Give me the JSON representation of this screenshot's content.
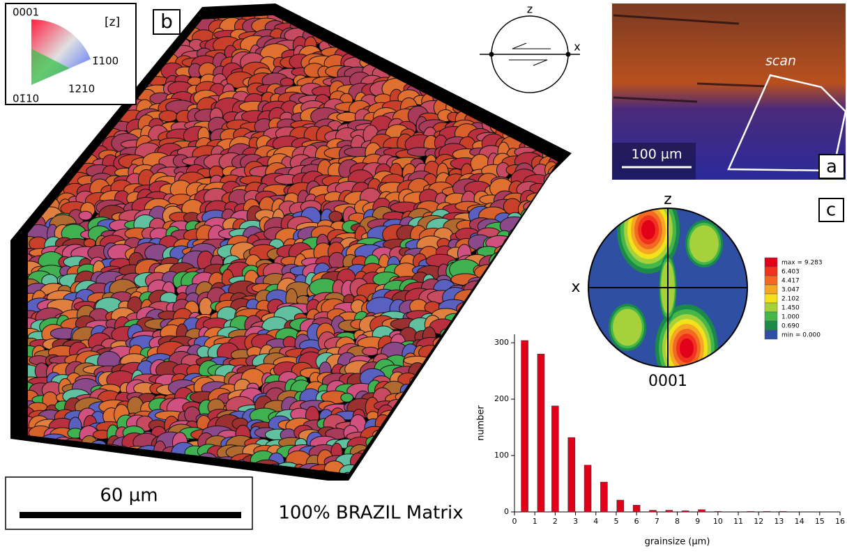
{
  "ipf_key": {
    "labels": [
      "0001",
      "[z]",
      "1̄100",
      "1210",
      "01̄10"
    ]
  },
  "panel_labels": {
    "b": "b",
    "a": "a",
    "c": "c"
  },
  "shear_sense": {
    "z": "z",
    "x": "x"
  },
  "photo": {
    "scan": "scan",
    "scale": "100 µm"
  },
  "map": {
    "scale": "60 µm",
    "caption": "100% BRAZIL Matrix"
  },
  "pole_figure": {
    "z": "z",
    "x": "x",
    "title": "0001",
    "legend": [
      {
        "label": "max = 9.283",
        "color": "#e0001a"
      },
      {
        "label": "6.403",
        "color": "#f0321e"
      },
      {
        "label": "4.417",
        "color": "#f26a22"
      },
      {
        "label": "3.047",
        "color": "#f5a623"
      },
      {
        "label": "2.102",
        "color": "#f2e21c"
      },
      {
        "label": "1.450",
        "color": "#a6d13a"
      },
      {
        "label": "1.000",
        "color": "#45b649"
      },
      {
        "label": "0.690",
        "color": "#1a8a4a"
      },
      {
        "label": "min = 0.000",
        "color": "#2f4fa3"
      }
    ]
  },
  "chart_data": {
    "type": "bar",
    "xlabel": "grainsize (µm)",
    "ylabel": "number",
    "color": "#e0001a",
    "x": [
      0.5,
      1.3,
      2.0,
      2.8,
      3.6,
      4.4,
      5.2,
      6.0,
      6.8,
      7.6,
      8.4,
      9.2,
      10.0,
      11.6,
      12.4,
      13.2
    ],
    "values": [
      304,
      280,
      188,
      132,
      83,
      53,
      21,
      12,
      3,
      3,
      2,
      4,
      1,
      1,
      1,
      1
    ],
    "xlim": [
      0,
      16
    ],
    "ylim": [
      0,
      315
    ],
    "xticks": [
      0,
      1,
      2,
      3,
      4,
      5,
      6,
      7,
      8,
      9,
      10,
      11,
      12,
      13,
      14,
      15,
      16
    ],
    "yticks": [
      0,
      100,
      200,
      300
    ]
  }
}
